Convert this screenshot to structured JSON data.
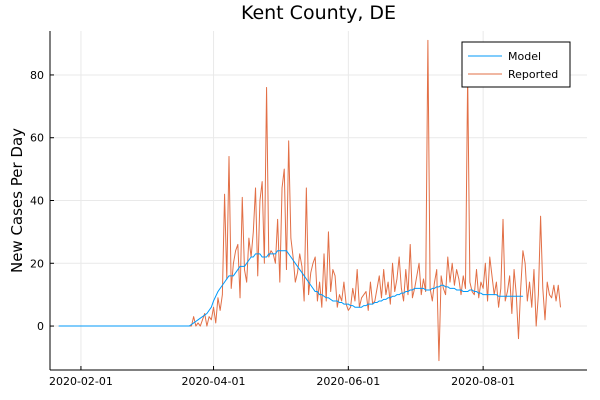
{
  "chart_data": {
    "type": "line",
    "title": "Kent County, DE",
    "xlabel": "",
    "ylabel": "New Cases Per Day",
    "x_start": "2020-01-22",
    "x_ticks": [
      "2020-02-01",
      "2020-04-01",
      "2020-06-01",
      "2020-08-01"
    ],
    "y_ticks": [
      0,
      20,
      40,
      60,
      80
    ],
    "xlim": [
      "2020-01-18",
      "2020-09-17"
    ],
    "ylim": [
      -14,
      94
    ],
    "grid": true,
    "legend_position": "top-right",
    "series": [
      {
        "name": "Model",
        "color": "#009AFA",
        "values": [
          0,
          0,
          0,
          0,
          0,
          0,
          0,
          0,
          0,
          0,
          0,
          0,
          0,
          0,
          0,
          0,
          0,
          0,
          0,
          0,
          0,
          0,
          0,
          0,
          0,
          0,
          0,
          0,
          0,
          0,
          0,
          0,
          0,
          0,
          0,
          0,
          0,
          0,
          0,
          0,
          0,
          0,
          0,
          0,
          0,
          0,
          0,
          0,
          0,
          0,
          0,
          0,
          0,
          0,
          0,
          0,
          0,
          0,
          0,
          0,
          0.5,
          1,
          1.5,
          2,
          2.5,
          3,
          3.5,
          4,
          5,
          6,
          8,
          9.5,
          11,
          12,
          13,
          14,
          15,
          16,
          16,
          16,
          17,
          18,
          19,
          19,
          19,
          20,
          21,
          22,
          22,
          23,
          23,
          23,
          22,
          22,
          22,
          23,
          23,
          23,
          23,
          24,
          24,
          24,
          24,
          24,
          23,
          22,
          21,
          20,
          19,
          18,
          17,
          16,
          15,
          14,
          13,
          12,
          11,
          11,
          10,
          10,
          9.5,
          9,
          9,
          8.5,
          8,
          8,
          8,
          7.5,
          7.5,
          7,
          7,
          7,
          6.5,
          6.5,
          6,
          6,
          6,
          6,
          6.5,
          6.5,
          7,
          7,
          7,
          7.5,
          7.5,
          8,
          8,
          8.5,
          8.5,
          9,
          9,
          9.5,
          9.5,
          10,
          10,
          10.5,
          10.5,
          11,
          11,
          11.5,
          11.5,
          12,
          12,
          12,
          12,
          12,
          11.5,
          11.5,
          11.5,
          12,
          12,
          12.5,
          12.5,
          13,
          13,
          12.5,
          12.5,
          12,
          12,
          12,
          11.5,
          11.5,
          11.5,
          11,
          11,
          11,
          11.5,
          11.5,
          11,
          11,
          10.5,
          10.5,
          10,
          10,
          10,
          10,
          10,
          10,
          10,
          9.5,
          9.5,
          9.5,
          9.5,
          9.5,
          9.5,
          9.5,
          9.5,
          9.5,
          9.5,
          9.5,
          9.5
        ]
      },
      {
        "name": "Reported",
        "color": "#E26F46",
        "values": [
          0,
          0,
          0,
          0,
          0,
          0,
          0,
          0,
          0,
          0,
          0,
          0,
          0,
          0,
          0,
          0,
          0,
          0,
          0,
          0,
          0,
          0,
          0,
          0,
          0,
          0,
          0,
          0,
          0,
          0,
          0,
          0,
          0,
          0,
          0,
          0,
          0,
          0,
          0,
          0,
          0,
          0,
          0,
          0,
          0,
          0,
          0,
          0,
          0,
          0,
          0,
          0,
          0,
          0,
          0,
          0,
          0,
          0,
          0,
          0,
          0,
          3,
          0,
          1,
          0,
          2,
          4,
          0,
          3,
          2,
          6,
          1,
          9,
          5,
          10,
          42,
          15,
          54,
          12,
          20,
          24,
          26,
          9,
          41,
          18,
          14,
          28,
          22,
          30,
          44,
          16,
          40,
          46,
          20,
          76,
          22,
          24,
          23,
          20,
          34,
          14,
          44,
          50,
          18,
          59,
          28,
          22,
          14,
          17,
          23,
          19,
          8,
          44,
          10,
          17,
          20,
          22,
          8,
          14,
          6,
          23,
          8,
          30,
          11,
          18,
          16,
          6,
          10,
          8,
          14,
          7,
          5,
          6,
          12,
          8,
          18,
          6,
          9,
          10,
          11,
          5,
          14,
          7,
          8,
          12,
          16,
          9,
          18,
          10,
          14,
          7,
          20,
          11,
          15,
          22,
          12,
          8,
          18,
          10,
          26,
          9,
          12,
          16,
          20,
          10,
          15,
          11,
          91,
          12,
          8,
          14,
          18,
          -11,
          16,
          12,
          10,
          22,
          14,
          20,
          13,
          18,
          15,
          10,
          16,
          12,
          80,
          14,
          11,
          10,
          18,
          9,
          14,
          12,
          20,
          8,
          22,
          16,
          10,
          14,
          6,
          12,
          34,
          8,
          11,
          16,
          4,
          18,
          10,
          -4,
          12,
          24,
          20,
          8,
          14,
          6,
          18,
          0,
          10,
          35,
          12,
          2,
          14,
          10,
          9,
          13,
          8,
          13,
          6
        ]
      }
    ]
  }
}
